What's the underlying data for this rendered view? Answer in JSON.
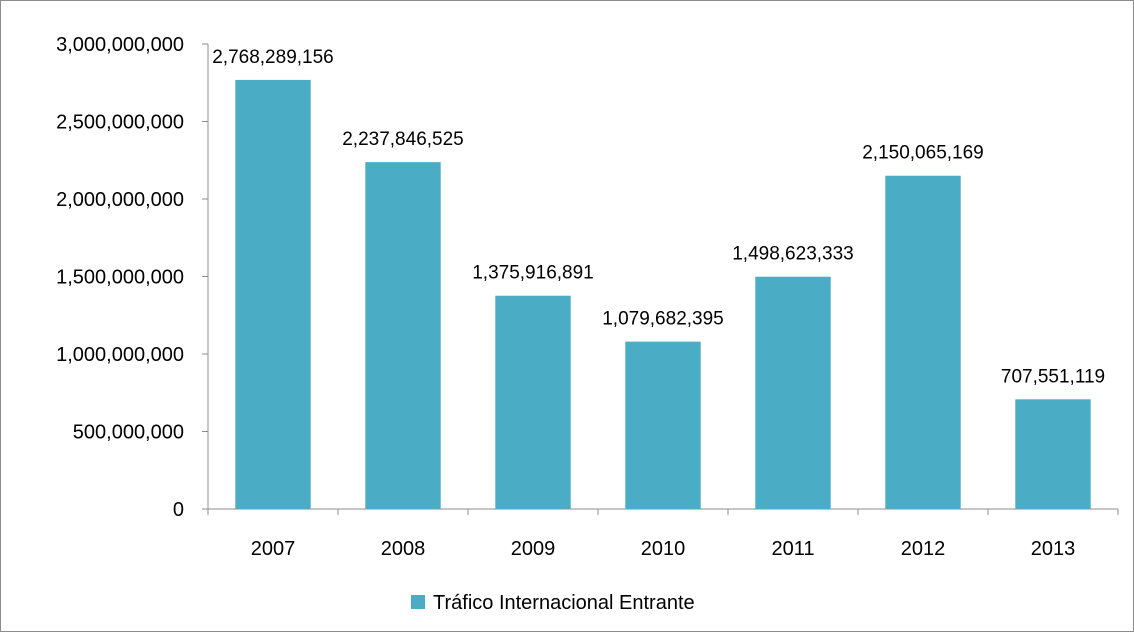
{
  "chart_data": {
    "type": "bar",
    "categories": [
      "2007",
      "2008",
      "2009",
      "2010",
      "2011",
      "2012",
      "2013"
    ],
    "series": [
      {
        "name": "Tráfico Internacional Entrante",
        "values": [
          2768289156,
          2237846525,
          1375916891,
          1079682395,
          1498623333,
          2150065169,
          707551119
        ],
        "data_labels": [
          "2,768,289,156",
          "2,237,846,525",
          "1,375,916,891",
          "1,079,682,395",
          "1,498,623,333",
          "2,150,065,169",
          "707,551,119"
        ]
      }
    ],
    "ylim": [
      0,
      3000000000
    ],
    "yticks": [
      0,
      500000000,
      1000000000,
      1500000000,
      2000000000,
      2500000000,
      3000000000
    ],
    "ytick_labels": [
      "0",
      "500,000,000",
      "1,000,000,000",
      "1,500,000,000",
      "2,000,000,000",
      "2,500,000,000",
      "3,000,000,000"
    ],
    "grid": false,
    "legend_position": "bottom",
    "bar_color": "#4BACC6",
    "title": "",
    "xlabel": "",
    "ylabel": ""
  }
}
